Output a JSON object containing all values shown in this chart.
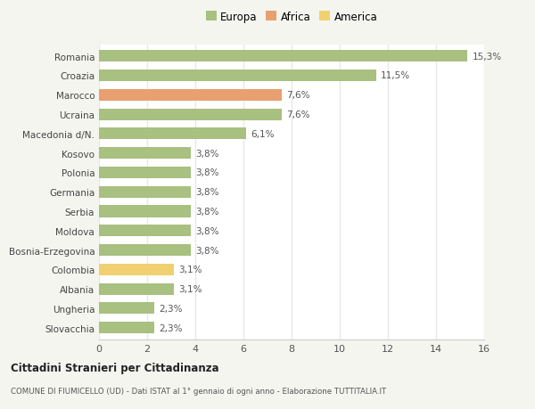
{
  "categories": [
    "Romania",
    "Croazia",
    "Marocco",
    "Ucraina",
    "Macedonia d/N.",
    "Kosovo",
    "Polonia",
    "Germania",
    "Serbia",
    "Moldova",
    "Bosnia-Erzegovina",
    "Colombia",
    "Albania",
    "Ungheria",
    "Slovacchia"
  ],
  "values": [
    15.3,
    11.5,
    7.6,
    7.6,
    6.1,
    3.8,
    3.8,
    3.8,
    3.8,
    3.8,
    3.8,
    3.1,
    3.1,
    2.3,
    2.3
  ],
  "labels": [
    "15,3%",
    "11,5%",
    "7,6%",
    "7,6%",
    "6,1%",
    "3,8%",
    "3,8%",
    "3,8%",
    "3,8%",
    "3,8%",
    "3,8%",
    "3,1%",
    "3,1%",
    "2,3%",
    "2,3%"
  ],
  "colors": [
    "#a8c080",
    "#a8c080",
    "#e8a070",
    "#a8c080",
    "#a8c080",
    "#a8c080",
    "#a8c080",
    "#a8c080",
    "#a8c080",
    "#a8c080",
    "#a8c080",
    "#f0d070",
    "#a8c080",
    "#a8c080",
    "#a8c080"
  ],
  "legend": [
    {
      "label": "Europa",
      "color": "#a8c080"
    },
    {
      "label": "Africa",
      "color": "#e8a070"
    },
    {
      "label": "America",
      "color": "#f0d070"
    }
  ],
  "xlim": [
    0,
    16
  ],
  "xticks": [
    0,
    2,
    4,
    6,
    8,
    10,
    12,
    14,
    16
  ],
  "title": "Cittadini Stranieri per Cittadinanza",
  "subtitle": "COMUNE DI FIUMICELLO (UD) - Dati ISTAT al 1° gennaio di ogni anno - Elaborazione TUTTITALIA.IT",
  "fig_background": "#f5f5f0",
  "plot_background": "#ffffff",
  "grid_color": "#e8e8e8",
  "bar_height": 0.6
}
